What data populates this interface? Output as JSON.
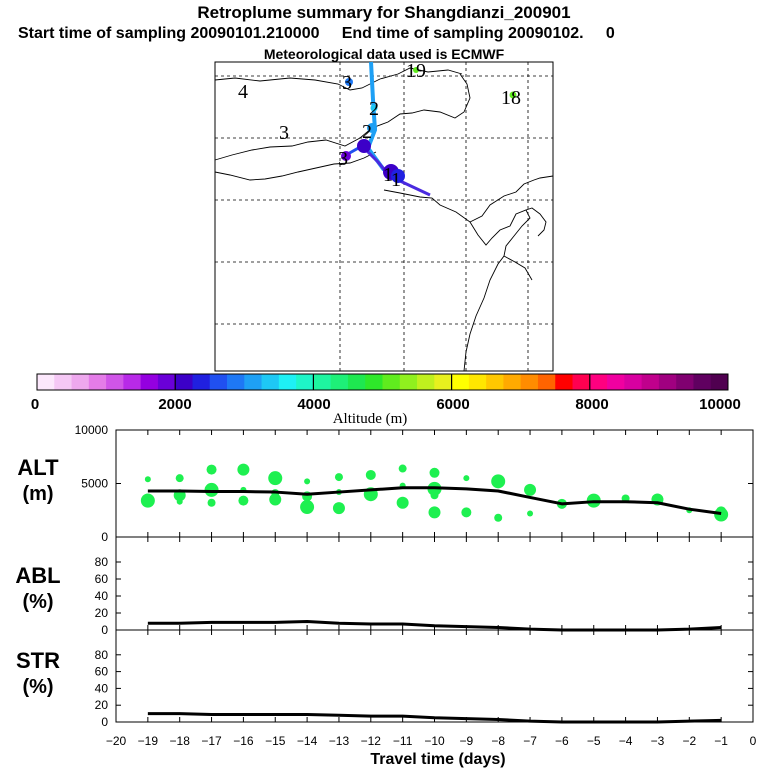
{
  "header": {
    "title": "Retroplume summary for Shangdianzi_200901",
    "subtitle": "Start time of sampling 20090101.210000     End time of sampling 20090102.     0",
    "met_line": "Meteorological data used is ECMWF"
  },
  "map": {
    "labels": [
      {
        "text": "4"
      },
      {
        "text": "3"
      },
      {
        "text": "3"
      },
      {
        "text": "2"
      },
      {
        "text": "2"
      },
      {
        "text": "3"
      },
      {
        "text": "1"
      },
      {
        "text": "1"
      },
      {
        "text": "19"
      },
      {
        "text": "18"
      }
    ]
  },
  "colorbar": {
    "ticks": [
      "0",
      "2000",
      "4000",
      "6000",
      "8000",
      "10000"
    ],
    "label": "Altitude (m)",
    "colors": [
      "#fce8fc",
      "#f5c8f5",
      "#eea8ee",
      "#e47ce8",
      "#d055e8",
      "#b82ae8",
      "#9400e0",
      "#6a00d8",
      "#3c00c8",
      "#2020e0",
      "#2050f0",
      "#1e78f5",
      "#1ea0f5",
      "#1ec8f5",
      "#1ef0f5",
      "#1ef5c8",
      "#1ef5a0",
      "#1ef078",
      "#1ee850",
      "#2ee82a",
      "#60ec1e",
      "#90f01e",
      "#c0f01e",
      "#e8f01e",
      "#ffff00",
      "#ffe600",
      "#ffc800",
      "#ffaa00",
      "#ff8c00",
      "#ff6400",
      "#ff0000",
      "#ff0050",
      "#ff0080",
      "#f000a0",
      "#d800a0",
      "#c0008c",
      "#a00080",
      "#800070",
      "#600060",
      "#500050"
    ]
  },
  "panels": {
    "alt": {
      "label_top": "ALT",
      "label_bottom": "(m)"
    },
    "abl": {
      "label_top": "ABL",
      "label_bottom": "(%)"
    },
    "str": {
      "label_top": "STR",
      "label_bottom": "(%)"
    }
  },
  "xaxis": {
    "label": "Travel time (days)",
    "ticks": [
      "−20",
      "−19",
      "−18",
      "−17",
      "−16",
      "−15",
      "−14",
      "−13",
      "−12",
      "−11",
      "−10",
      "−9",
      "−8",
      "−7",
      "−6",
      "−5",
      "−4",
      "−3",
      "−2",
      "−1",
      "0"
    ]
  },
  "chart_data": [
    {
      "type": "line",
      "title": "ALT",
      "ylabel": "ALT (m)",
      "xlabel": "Travel time (days)",
      "xlim": [
        -20,
        0
      ],
      "ylim": [
        0,
        10000
      ],
      "yticks": [
        "10000",
        "5000",
        "0"
      ],
      "x": [
        -19,
        -18,
        -17,
        -16,
        -15,
        -14,
        -13,
        -12,
        -11,
        -10,
        -9,
        -8,
        -7,
        -6,
        -5,
        -4,
        -3,
        -2,
        -1
      ],
      "series": [
        {
          "name": "mean altitude",
          "values": [
            4300,
            4300,
            4250,
            4250,
            4200,
            4000,
            4200,
            4400,
            4600,
            4600,
            4500,
            4300,
            3700,
            3100,
            3300,
            3300,
            3200,
            2600,
            2200
          ]
        }
      ],
      "scatter": {
        "x": [
          -19,
          -19,
          -19,
          -18,
          -18,
          -18,
          -17,
          -17,
          -17,
          -16,
          -16,
          -16,
          -15,
          -15,
          -15,
          -14,
          -14,
          -14,
          -13,
          -13,
          -13,
          -12,
          -12,
          -11,
          -11,
          -11,
          -10,
          -10,
          -10,
          -10,
          -9,
          -9,
          -8,
          -8,
          -7,
          -7,
          -6,
          -5,
          -4,
          -3,
          -2,
          -1,
          -1
        ],
        "y": [
          5400,
          3600,
          3400,
          5500,
          3900,
          3300,
          6300,
          4400,
          3200,
          6300,
          4400,
          3400,
          5500,
          4100,
          3500,
          5200,
          3800,
          2800,
          5600,
          2700,
          4200,
          5800,
          4000,
          6400,
          3200,
          4800,
          6000,
          4500,
          3900,
          2300,
          5500,
          2300,
          5200,
          1800,
          4400,
          2200,
          3100,
          3400,
          3600,
          3500,
          2500,
          2400,
          2100
        ]
      }
    },
    {
      "type": "line",
      "title": "ABL",
      "ylabel": "ABL (%)",
      "xlabel": "Travel time (days)",
      "xlim": [
        -20,
        0
      ],
      "ylim": [
        0,
        100
      ],
      "yticks": [
        "80",
        "60",
        "40",
        "20",
        "0"
      ],
      "x": [
        -19,
        -18,
        -17,
        -16,
        -15,
        -14,
        -13,
        -12,
        -11,
        -10,
        -9,
        -8,
        -7,
        -6,
        -5,
        -4,
        -3,
        -2,
        -1
      ],
      "series": [
        {
          "name": "ABL fraction",
          "values": [
            8,
            8,
            9,
            9,
            9,
            10,
            8,
            7,
            7,
            5,
            4,
            3,
            1,
            0,
            0,
            0,
            0,
            1,
            3
          ]
        }
      ]
    },
    {
      "type": "line",
      "title": "STR",
      "ylabel": "STR (%)",
      "xlabel": "Travel time (days)",
      "xlim": [
        -20,
        0
      ],
      "ylim": [
        0,
        100
      ],
      "yticks": [
        "80",
        "60",
        "40",
        "20",
        "0"
      ],
      "x": [
        -19,
        -18,
        -17,
        -16,
        -15,
        -14,
        -13,
        -12,
        -11,
        -10,
        -9,
        -8,
        -7,
        -6,
        -5,
        -4,
        -3,
        -2,
        -1
      ],
      "series": [
        {
          "name": "STR fraction",
          "values": [
            10,
            10,
            9,
            9,
            9,
            9,
            8,
            7,
            7,
            5,
            4,
            3,
            1,
            0,
            0,
            0,
            0,
            1,
            2
          ]
        }
      ]
    }
  ]
}
